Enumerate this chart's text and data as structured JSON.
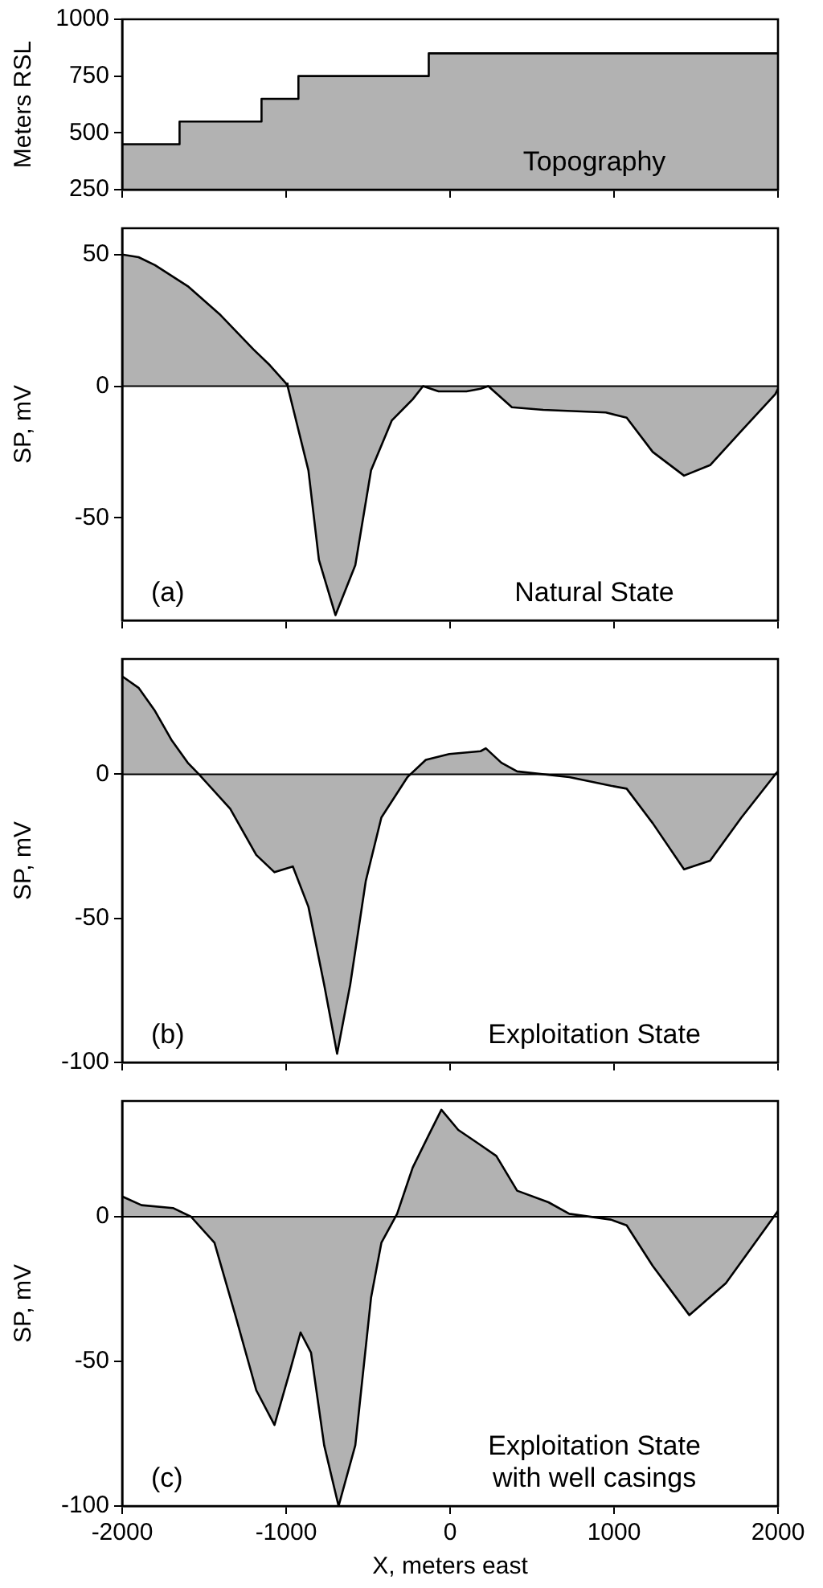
{
  "chart_data": [
    {
      "type": "area",
      "ylabel": "Meters RSL",
      "xlim": [
        -2000,
        2000
      ],
      "xticks": [
        -2000,
        -1000,
        0,
        1000,
        2000
      ],
      "ylim": [
        250,
        1000
      ],
      "yticks": [
        250,
        500,
        750,
        1000
      ],
      "tick_labels": "y",
      "grid": false,
      "legend": false,
      "marker": "none",
      "annotations": [
        "Topography"
      ],
      "series": [
        {
          "color": "#000000",
          "x": [
            -2000,
            -1650,
            -1650,
            -1150,
            -1150,
            -925,
            -925,
            -130,
            -130,
            2000
          ],
          "values": [
            450,
            450,
            550,
            550,
            650,
            650,
            750,
            750,
            850,
            850
          ]
        }
      ]
    },
    {
      "type": "area",
      "ylabel": "SP, mV",
      "xlim": [
        -2000,
        2000
      ],
      "xticks": [
        -2000,
        -1000,
        0,
        1000,
        2000
      ],
      "ylim": [
        -89,
        60
      ],
      "yticks": [
        -50,
        0,
        50
      ],
      "tick_labels": "y",
      "grid": false,
      "legend": false,
      "marker": "none",
      "annotations": [
        "(a)",
        "Natural State"
      ],
      "ref_lines": [
        {
          "axis": "y",
          "value": 0
        }
      ],
      "series": [
        {
          "color": "#000000",
          "x": [
            -2000,
            -1900,
            -1800,
            -1600,
            -1400,
            -1200,
            -1100,
            -1000,
            -991,
            -864,
            -800,
            -699,
            -578,
            -482,
            -355,
            -228,
            -165,
            -70,
            100,
            186,
            233,
            377,
            568,
            950,
            1077,
            1236,
            1427,
            1586,
            1777,
            1984,
            2000
          ],
          "values": [
            50,
            49,
            46,
            38,
            27,
            14,
            8,
            1,
            0,
            -32,
            -66,
            -87,
            -68,
            -32,
            -13,
            -5,
            0,
            -2,
            -2,
            -1,
            0,
            -8,
            -9,
            -10,
            -12,
            -25,
            -34,
            -30,
            -17,
            -3,
            -1
          ]
        }
      ]
    },
    {
      "type": "area",
      "ylabel": "SP, mV",
      "xlim": [
        -2000,
        2000
      ],
      "xticks": [
        -2000,
        -1000,
        0,
        1000,
        2000
      ],
      "ylim": [
        -100,
        40
      ],
      "yticks": [
        -100,
        -50,
        0
      ],
      "tick_labels": "y",
      "grid": false,
      "legend": false,
      "marker": "none",
      "annotations": [
        "(b)",
        "Exploitation State"
      ],
      "ref_lines": [
        {
          "axis": "y",
          "value": 0
        }
      ],
      "series": [
        {
          "color": "#000000",
          "x": [
            -2000,
            -1900,
            -1800,
            -1700,
            -1600,
            -1532,
            -1341,
            -1182,
            -1071,
            -959,
            -864,
            -768,
            -689,
            -609,
            -514,
            -419,
            -260,
            -148,
            -5,
            186,
            218,
            313,
            409,
            727,
            981,
            1077,
            1236,
            1427,
            1586,
            1777,
            1984,
            2000
          ],
          "values": [
            34,
            30,
            22,
            12,
            4,
            0,
            -12,
            -28,
            -34,
            -32,
            -46,
            -73,
            -97,
            -73,
            -37,
            -15,
            -1,
            5,
            7,
            8,
            9,
            4,
            1,
            -1,
            -4,
            -5,
            -17,
            -33,
            -30,
            -15,
            0,
            1
          ]
        }
      ]
    },
    {
      "type": "area",
      "xlabel": "X, meters east",
      "ylabel": "SP, mV",
      "xlim": [
        -2000,
        2000
      ],
      "xticks": [
        -2000,
        -1000,
        0,
        1000,
        2000
      ],
      "ylim": [
        -100,
        40
      ],
      "yticks": [
        -100,
        -50,
        0
      ],
      "grid": false,
      "legend": false,
      "marker": "none",
      "annotations": [
        "(c)",
        "Exploitation State\nwith well casings"
      ],
      "ref_lines": [
        {
          "axis": "y",
          "value": 0
        }
      ],
      "series": [
        {
          "color": "#000000",
          "x": [
            -2000,
            -1882,
            -1690,
            -1580,
            -1437,
            -1310,
            -1182,
            -1071,
            -975,
            -912,
            -848,
            -768,
            -680,
            -578,
            -482,
            -419,
            -323,
            -228,
            -132,
            -53,
            50,
            180,
            282,
            409,
            600,
            727,
            981,
            1077,
            1236,
            1459,
            1682,
            1873,
            2000
          ],
          "values": [
            7,
            4,
            3,
            0,
            -9,
            -34,
            -60,
            -72,
            -53,
            -40,
            -47,
            -79,
            -100,
            -79,
            -28,
            -9,
            1,
            17,
            28,
            37,
            30,
            25,
            21,
            9,
            5,
            1,
            -1,
            -3,
            -17,
            -34,
            -23,
            -8,
            2
          ]
        }
      ]
    }
  ]
}
